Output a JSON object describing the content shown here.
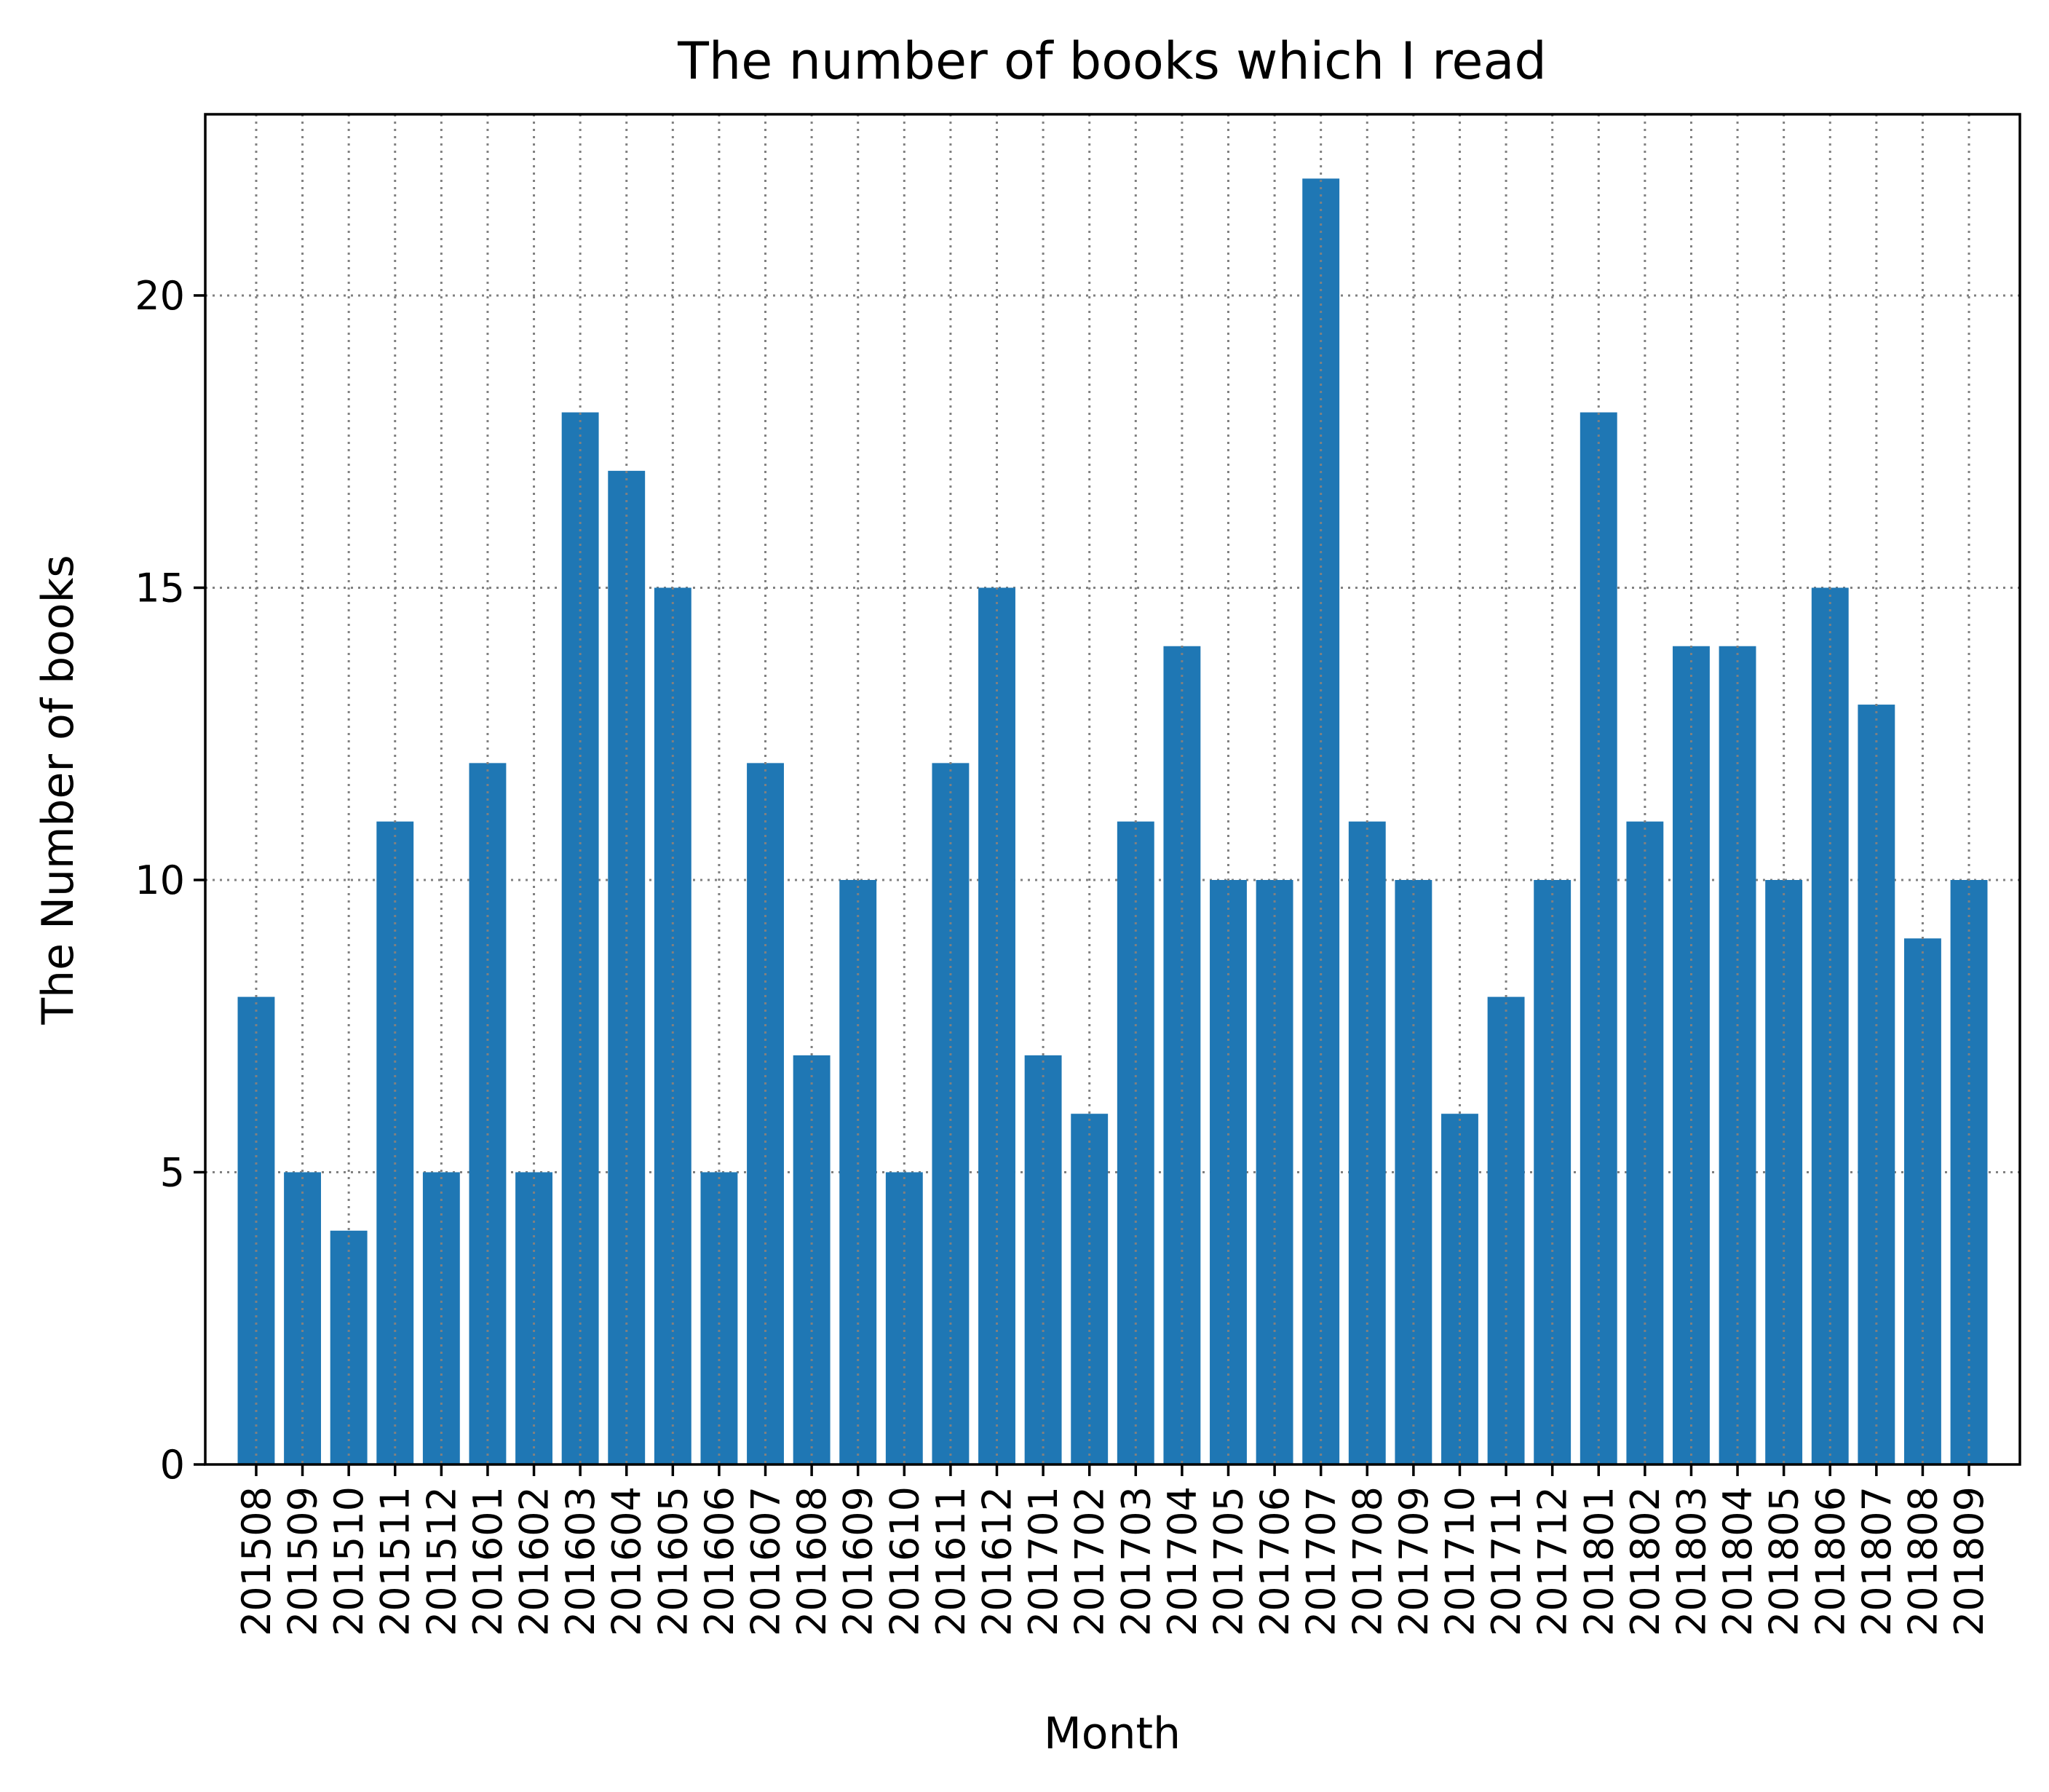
{
  "chart_data": {
    "type": "bar",
    "title": "The number of books which I read",
    "xlabel": "Month",
    "ylabel": "The Number of books",
    "categories": [
      "201508",
      "201509",
      "201510",
      "201511",
      "201512",
      "201601",
      "201602",
      "201603",
      "201604",
      "201605",
      "201606",
      "201607",
      "201608",
      "201609",
      "201610",
      "201611",
      "201612",
      "201701",
      "201702",
      "201703",
      "201704",
      "201705",
      "201706",
      "201707",
      "201708",
      "201709",
      "201710",
      "201711",
      "201712",
      "201801",
      "201802",
      "201803",
      "201804",
      "201805",
      "201806",
      "201807",
      "201808",
      "201809"
    ],
    "values": [
      8,
      5,
      4,
      11,
      5,
      12,
      5,
      18,
      17,
      15,
      5,
      12,
      7,
      10,
      5,
      12,
      15,
      7,
      6,
      11,
      14,
      10,
      10,
      22,
      11,
      10,
      6,
      8,
      10,
      18,
      11,
      14,
      14,
      10,
      15,
      13,
      9,
      10
    ],
    "yticks": [
      "0",
      "5",
      "10",
      "15",
      "20"
    ],
    "ylim": [
      0,
      23.1
    ],
    "grid": true,
    "grid_style": "dotted",
    "bar_color": "#1f77b4",
    "grid_color": "#808080",
    "legend": "none"
  }
}
